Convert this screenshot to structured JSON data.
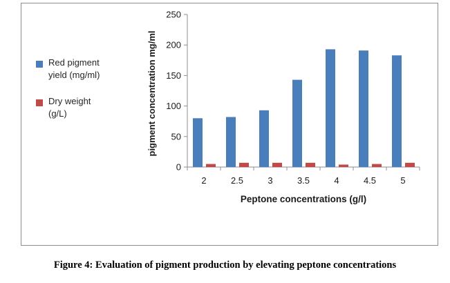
{
  "caption": "Figure 4: Evaluation of pigment production by elevating peptone concentrations",
  "chart_data": {
    "type": "bar",
    "title": "",
    "xlabel": "Peptone concentrations (g/l)",
    "ylabel": "pigment concentration mg/ml",
    "categories": [
      "2",
      "2.5",
      "3",
      "3.5",
      "4",
      "4.5",
      "5"
    ],
    "series": [
      {
        "name": "Red pigment yield (mg/ml)",
        "color": "#4a7ebb",
        "values": [
          80,
          82,
          93,
          143,
          193,
          191,
          183
        ]
      },
      {
        "name": "Dry weight (g/L)",
        "color": "#be4b48",
        "values": [
          5,
          7,
          7,
          7,
          4,
          5,
          7
        ]
      }
    ],
    "ylim": [
      0,
      250
    ],
    "yticks": [
      0,
      50,
      100,
      150,
      200,
      250
    ],
    "grid": false,
    "legend_position": "left"
  }
}
